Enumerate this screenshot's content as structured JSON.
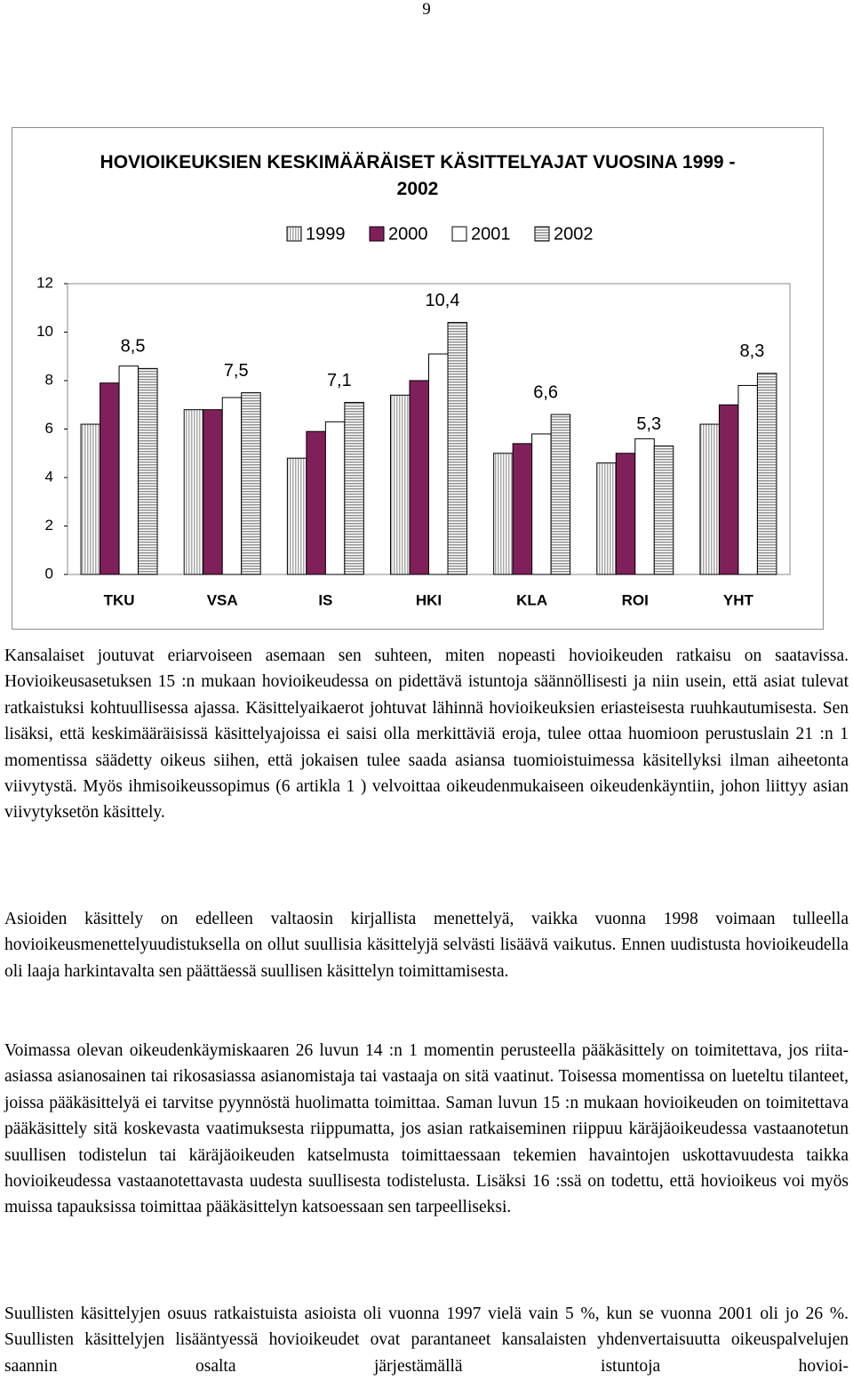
{
  "page_number": "9",
  "chart_data": {
    "type": "bar",
    "title": "HOVIOIKEUKSIEN KESKIMÄÄRÄISET KÄSITTELYAJAT VUOSINA 1999 - 2002",
    "categories": [
      "TKU",
      "VSA",
      "IS",
      "HKI",
      "KLA",
      "ROI",
      "YHT"
    ],
    "series": [
      {
        "name": "1999",
        "color": "#a8a8a8",
        "hatch": "vertical",
        "values": [
          6.2,
          6.8,
          4.8,
          7.4,
          5.0,
          4.6,
          6.2
        ]
      },
      {
        "name": "2000",
        "color": "#80205a",
        "values": [
          7.9,
          6.8,
          5.9,
          8.0,
          5.4,
          5.0,
          7.0
        ]
      },
      {
        "name": "2001",
        "color": "#ffffff",
        "values": [
          8.6,
          7.3,
          6.3,
          9.1,
          5.8,
          5.6,
          7.8
        ]
      },
      {
        "name": "2002",
        "color": "#909090",
        "hatch": "horizontal",
        "values": [
          8.5,
          7.5,
          7.1,
          10.4,
          6.6,
          5.3,
          8.3
        ],
        "value_labels": [
          "8,5",
          "7,5",
          "7,1",
          "10,4",
          "6,6",
          "5,3",
          "8,3"
        ]
      }
    ],
    "ylim": [
      0,
      12
    ],
    "yticks": [
      0,
      2,
      4,
      6,
      8,
      10,
      12
    ],
    "grid": false,
    "legend": "top"
  },
  "paragraphs": [
    "Kansalaiset joutuvat eriarvoiseen asemaan sen suhteen, miten nopeasti hovioikeuden ratkaisu on saatavissa. Hovioikeusasetuksen 15 :n mukaan hovioikeudessa on pidettävä istuntoja säännöllisesti ja niin usein, että asiat tulevat ratkaistuksi kohtuullisessa ajassa. Käsittelyaikaerot johtuvat lähinnä hovioikeuksien eriasteisesta ruuhkautumisesta. Sen lisäksi, että keskimääräisissä käsittelyajoissa ei saisi olla merkittäviä eroja, tulee ottaa huomioon perustuslain 21 :n 1 momentissa säädetty oikeus siihen, että jokaisen tulee saada asiansa tuomioistuimessa käsitellyksi ilman aiheetonta viivytystä. Myös ihmisoikeussopimus (6 artikla 1 ) velvoittaa oikeudenmukaiseen oikeudenkäyntiin, johon liittyy asian viivytyksetön käsittely.",
    "Asioiden käsittely on edelleen valtaosin kirjallista menettelyä, vaikka vuonna 1998 voimaan tulleella hovioikeusmenettelyuudistuksella on ollut suullisia käsittelyjä selvästi lisäävä vaikutus. Ennen uudistusta hovioikeudella oli laaja harkintavalta sen päättäessä suullisen käsittelyn toimittamisesta.",
    "Voimassa olevan oikeudenkäymiskaaren 26 luvun 14 :n 1 momentin perusteella pääkäsittely on toimitettava, jos riita-asiassa asianosainen tai rikosasiassa asianomistaja tai vastaaja on sitä vaatinut. Toisessa momentissa on lueteltu tilanteet, joissa pääkäsittelyä ei tarvitse pyynnöstä huolimatta toimittaa. Saman luvun 15 :n mukaan hovioikeuden on toimitettava pääkäsittely sitä koskevasta vaatimuksesta riippumatta, jos asian ratkaiseminen riippuu käräjäoikeudessa vastaanotetun suullisen todistelun tai käräjäoikeuden katselmusta toimittaessaan tekemien havaintojen uskottavuudesta taikka hovioikeudessa vastaanotettavasta uudesta suullisesta todistelusta. Lisäksi 16 :ssä on todettu, että hovioikeus voi myös muissa tapauksissa toimittaa pääkäsittelyn katsoessaan sen tarpeelliseksi.",
    "Suullisten käsittelyjen osuus ratkaistuista asioista oli vuonna 1997 vielä vain 5 %, kun se vuonna 2001 oli jo 26 %. Suullisten käsittelyjen lisääntyessä hovioikeudet ovat parantaneet kansalaisten yhdenvertaisuutta oikeuspalvelujen saannin osalta järjestämällä istuntoja hovioi-"
  ]
}
